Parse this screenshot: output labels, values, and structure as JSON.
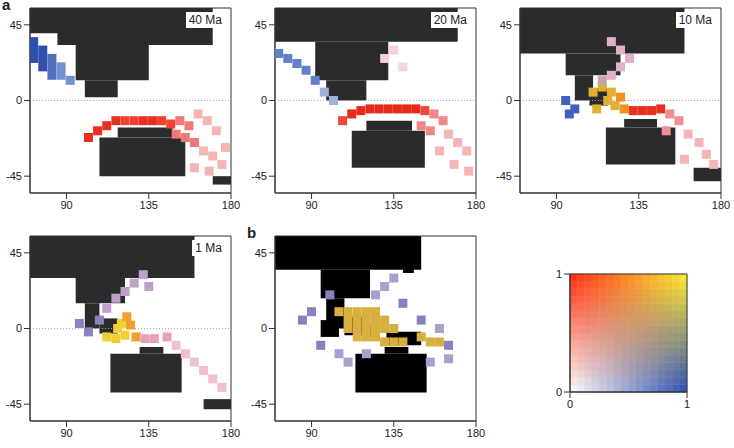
{
  "chart_data": [
    {
      "type": "scatter",
      "panel_label": "a",
      "title": "40 Ma",
      "xlim": [
        70,
        180
      ],
      "xticks": [
        90,
        135,
        180
      ],
      "ylim": [
        -55,
        55
      ],
      "yticks": [
        -45,
        0,
        45
      ],
      "marker": "square",
      "land_color": "#2b2b2e",
      "reference_line_y": 0,
      "land": [
        [
          70,
          95,
          40,
          55
        ],
        [
          85,
          170,
          33,
          55
        ],
        [
          95,
          135,
          12,
          33
        ],
        [
          100,
          118,
          2,
          12
        ],
        [
          108,
          155,
          -45,
          -22
        ],
        [
          118,
          148,
          -22,
          -16
        ],
        [
          170,
          180,
          -50,
          -45
        ]
      ],
      "x": [
        72,
        72,
        77,
        72,
        77,
        82,
        77,
        82,
        87,
        82,
        87,
        92,
        102,
        107,
        112,
        117,
        122,
        127,
        132,
        137,
        142,
        147,
        152,
        157,
        150,
        155,
        160,
        162,
        167,
        172,
        165,
        170,
        175,
        177,
        160,
        168
      ],
      "y": [
        35,
        30,
        30,
        25,
        25,
        25,
        20,
        20,
        20,
        15,
        15,
        12,
        -22,
        -18,
        -15,
        -12,
        -12,
        -12,
        -12,
        -12,
        -12,
        -14,
        -12,
        -15,
        -20,
        -22,
        -25,
        -8,
        -12,
        -18,
        -30,
        -33,
        -38,
        -28,
        -40,
        -42
      ],
      "colors": [
        "#3050b0",
        "#3050b0",
        "#3050b0",
        "#3050b0",
        "#3050b0",
        "#5070c0",
        "#3050b0",
        "#5070c0",
        "#7090d0",
        "#5070c0",
        "#7090d0",
        "#7090d0",
        "#e83020",
        "#e83020",
        "#e83020",
        "#e83020",
        "#f04030",
        "#f04030",
        "#e83020",
        "#e83020",
        "#f04030",
        "#f04030",
        "#f07878",
        "#f07878",
        "#f07878",
        "#f07878",
        "#f07878",
        "#f5b5b5",
        "#f5b5b5",
        "#f5b5b5",
        "#f5b5b5",
        "#f5b5b5",
        "#f5b5b5",
        "#f5b5b5",
        "#f5b5b5",
        "#f5b5b5"
      ]
    },
    {
      "type": "scatter",
      "title": "20 Ma",
      "xlim": [
        70,
        180
      ],
      "xticks": [
        90,
        135,
        180
      ],
      "ylim": [
        -55,
        55
      ],
      "yticks": [
        -45,
        0,
        45
      ],
      "marker": "square",
      "land_color": "#2b2b2e",
      "reference_line_y": 0,
      "land": [
        [
          70,
          170,
          35,
          55
        ],
        [
          92,
          132,
          12,
          35
        ],
        [
          98,
          120,
          0,
          12
        ],
        [
          112,
          152,
          -40,
          -18
        ],
        [
          120,
          145,
          -18,
          -12
        ]
      ],
      "x": [
        72,
        77,
        82,
        87,
        92,
        97,
        102,
        112,
        117,
        122,
        127,
        132,
        137,
        142,
        147,
        107,
        152,
        157,
        162,
        150,
        155,
        130,
        135,
        140,
        165,
        170,
        175,
        160,
        168,
        176
      ],
      "y": [
        28,
        25,
        22,
        18,
        12,
        5,
        0,
        -8,
        -6,
        -5,
        -5,
        -5,
        -5,
        -5,
        -5,
        -12,
        -6,
        -8,
        -12,
        -15,
        -18,
        25,
        30,
        20,
        -20,
        -25,
        -30,
        -30,
        -38,
        -42
      ],
      "colors": [
        "#6080c8",
        "#6080c8",
        "#6080c8",
        "#6080c8",
        "#6080c8",
        "#a0b0dd",
        "#a0b0dd",
        "#e82818",
        "#e82818",
        "#e82818",
        "#e82818",
        "#e82818",
        "#e82818",
        "#e82818",
        "#e82818",
        "#ee4838",
        "#ee4838",
        "#f08888",
        "#f08888",
        "#f08888",
        "#f08888",
        "#f8d0d8",
        "#f8d0d8",
        "#f8d0d8",
        "#f5b5b5",
        "#f5b5b5",
        "#f5b5b5",
        "#f5b5b5",
        "#f5b5b5",
        "#f5b5b5"
      ]
    },
    {
      "type": "scatter",
      "title": "10 Ma",
      "xlim": [
        70,
        180
      ],
      "xticks": [
        90,
        135,
        180
      ],
      "ylim": [
        -55,
        55
      ],
      "yticks": [
        -45,
        0,
        45
      ],
      "marker": "square",
      "land_color": "#2b2b2e",
      "reference_line_y": 0,
      "land": [
        [
          70,
          160,
          28,
          55
        ],
        [
          95,
          125,
          15,
          28
        ],
        [
          100,
          110,
          0,
          15
        ],
        [
          108,
          118,
          -3,
          7
        ],
        [
          117,
          155,
          -38,
          -16
        ],
        [
          127,
          145,
          -16,
          -11
        ],
        [
          165,
          180,
          -48,
          -40
        ]
      ],
      "x": [
        95,
        100,
        97,
        110,
        115,
        120,
        118,
        122,
        112,
        125,
        127,
        132,
        137,
        142,
        147,
        120,
        125,
        130,
        125,
        120,
        115,
        152,
        157,
        150,
        162,
        168,
        172,
        160,
        176
      ],
      "y": [
        0,
        -5,
        -8,
        5,
        8,
        5,
        0,
        -3,
        -5,
        2,
        -5,
        -6,
        -6,
        -6,
        -5,
        15,
        20,
        25,
        30,
        35,
        12,
        -8,
        -12,
        -18,
        -20,
        -25,
        -32,
        -35,
        -38
      ],
      "colors": [
        "#4060c0",
        "#4060c0",
        "#4060c0",
        "#e0b030",
        "#e0b030",
        "#e0b030",
        "#e0b030",
        "#e0b030",
        "#e0b030",
        "#f09020",
        "#f09020",
        "#e83020",
        "#e83020",
        "#e83020",
        "#e83020",
        "#e0b0c8",
        "#e0b0c8",
        "#e0b0c8",
        "#e0b0c8",
        "#e0b0c8",
        "#c8a0b0",
        "#f09090",
        "#f09090",
        "#f09090",
        "#f5b5b5",
        "#f5b5b5",
        "#f5b5b5",
        "#f5b5b5",
        "#f5b5b5"
      ]
    },
    {
      "type": "scatter",
      "title": "1 Ma",
      "xlim": [
        70,
        180
      ],
      "xticks": [
        90,
        135,
        180
      ],
      "ylim": [
        -55,
        55
      ],
      "yticks": [
        -45,
        0,
        45
      ],
      "marker": "square",
      "land_color": "#2b2b2e",
      "reference_line_y": 0,
      "land": [
        [
          70,
          160,
          30,
          55
        ],
        [
          95,
          122,
          15,
          30
        ],
        [
          100,
          108,
          0,
          15
        ],
        [
          108,
          118,
          -3,
          6
        ],
        [
          114,
          153,
          -38,
          -15
        ],
        [
          130,
          143,
          -15,
          -11
        ],
        [
          165,
          180,
          -48,
          -42
        ]
      ],
      "x": [
        118,
        122,
        117,
        112,
        120,
        125,
        128,
        123,
        108,
        102,
        97,
        112,
        117,
        122,
        127,
        132,
        135,
        133,
        138,
        145,
        150,
        155,
        160,
        165,
        170,
        175
      ],
      "y": [
        0,
        -4,
        -6,
        -5,
        3,
        2,
        -5,
        7,
        5,
        -2,
        3,
        12,
        18,
        22,
        27,
        32,
        25,
        -6,
        -6,
        -5,
        -10,
        -15,
        -20,
        -25,
        -30,
        -35
      ],
      "colors": [
        "#f0d030",
        "#f0d030",
        "#f0d030",
        "#f0d030",
        "#f0d030",
        "#f0a030",
        "#f0a030",
        "#f0a030",
        "#9080c0",
        "#9080c0",
        "#9080c0",
        "#c0a0c8",
        "#c0a0c8",
        "#c0a0c8",
        "#c0a0c8",
        "#c0a0c8",
        "#c0a0c8",
        "#e8a0c0",
        "#e8a0c0",
        "#e8a0c0",
        "#f0c0d0",
        "#f0c0d0",
        "#f0c0d0",
        "#f0c0d0",
        "#f0c0d0",
        "#f0c0d0"
      ]
    },
    {
      "type": "scatter",
      "panel_label": "b",
      "xlim": [
        70,
        180
      ],
      "xticks": [
        90,
        135,
        180
      ],
      "ylim": [
        -55,
        55
      ],
      "yticks": [
        -45,
        0,
        45
      ],
      "marker": "square",
      "land_color": "#000000",
      "land": [
        [
          70,
          150,
          35,
          55
        ],
        [
          95,
          122,
          18,
          35
        ],
        [
          98,
          108,
          0,
          18
        ],
        [
          140,
          146,
          33,
          45
        ],
        [
          95,
          105,
          -5,
          5
        ],
        [
          108,
          118,
          -4,
          7
        ],
        [
          119,
          125,
          -5,
          2
        ],
        [
          131,
          150,
          -10,
          -2
        ],
        [
          114,
          153,
          -38,
          -15
        ],
        [
          130,
          143,
          -15,
          -11
        ]
      ],
      "x": [
        105,
        110,
        115,
        120,
        125,
        110,
        115,
        120,
        125,
        130,
        110,
        115,
        120,
        125,
        130,
        135,
        115,
        120,
        125,
        130,
        135,
        140,
        150,
        155,
        160,
        90,
        85,
        95,
        105,
        100,
        125,
        130,
        135,
        140,
        150,
        160,
        165,
        165,
        155,
        110,
        120
      ],
      "y": [
        10,
        10,
        10,
        10,
        10,
        5,
        5,
        5,
        5,
        5,
        0,
        0,
        0,
        0,
        0,
        0,
        -5,
        -5,
        -5,
        -8,
        -8,
        -8,
        -5,
        -8,
        -8,
        10,
        5,
        -10,
        -15,
        20,
        20,
        25,
        30,
        15,
        5,
        0,
        -10,
        -18,
        -20,
        -20,
        -15
      ],
      "colors": [
        "#d8b040",
        "#d8b040",
        "#d8b040",
        "#d8b040",
        "#d8b040",
        "#d8b040",
        "#d8b040",
        "#d8b040",
        "#d8b040",
        "#d8b040",
        "#d8b040",
        "#d8b040",
        "#d8b040",
        "#d8b040",
        "#d8b040",
        "#d8b040",
        "#d8b040",
        "#d8b040",
        "#d8b040",
        "#d8b040",
        "#d8b040",
        "#d8b040",
        "#d8b040",
        "#d8b040",
        "#d8b040",
        "#8a80c0",
        "#8a80c0",
        "#8a80c0",
        "#a8a0d0",
        "#8a80c0",
        "#a8a0d0",
        "#a8a0d0",
        "#a8a0d0",
        "#8a80c0",
        "#8a80c0",
        "#a8a0d0",
        "#8a80c0",
        "#a8a0d0",
        "#a8a0d0",
        "#a8a0d0",
        "#a8a0d0"
      ]
    },
    {
      "type": "colormap",
      "xlim": [
        0,
        1
      ],
      "xticks": [
        0,
        1
      ],
      "ylim": [
        0,
        1
      ],
      "yticks": [
        0,
        1
      ],
      "corner_colors": {
        "bottom_left": "#ffffff",
        "bottom_right": "#2a4db5",
        "top_left": "#ff2a10",
        "top_right": "#ffee30"
      }
    }
  ]
}
